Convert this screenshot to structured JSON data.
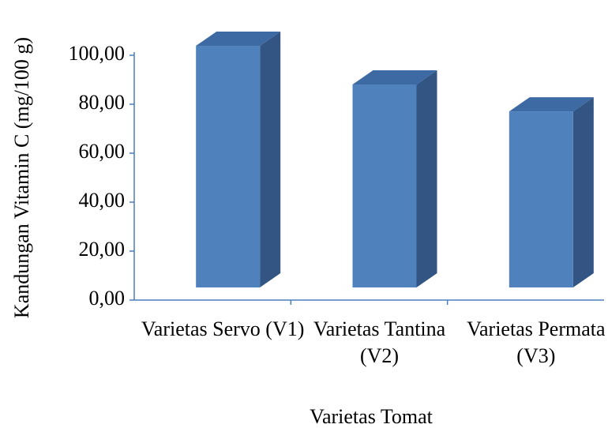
{
  "chart_data": {
    "type": "bar3d",
    "y_label": "Kandungan Vitamin C (mg/100 g)",
    "x_label": "Varietas Tomat",
    "categories": [
      "Varietas Servo (V1)",
      "Varietas Tantina (V2)",
      "Varietas Permata (V3)"
    ],
    "values": [
      98.7,
      82.9,
      71.9
    ],
    "color": "#4f81bd",
    "ylim": [
      0,
      100
    ],
    "yticks": [
      {
        "value": 0,
        "label": "0,00"
      },
      {
        "value": 20,
        "label": "20,00"
      },
      {
        "value": 40,
        "label": "40,00"
      },
      {
        "value": 60,
        "label": "60,00"
      },
      {
        "value": 80,
        "label": "80,00"
      },
      {
        "value": 100,
        "label": "100,00"
      }
    ],
    "grid": false
  }
}
